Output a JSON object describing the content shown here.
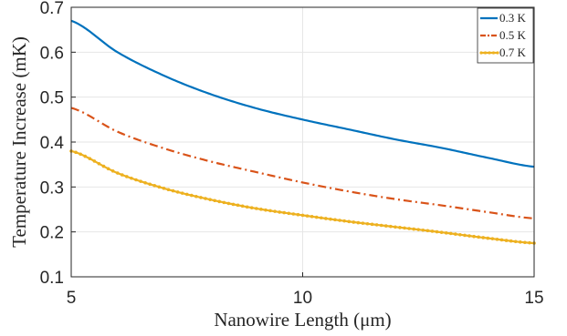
{
  "chart_data": {
    "type": "line",
    "title": "",
    "xlabel": "Nanowire Length (μm)",
    "ylabel": "Temperature Increase (mK)",
    "xlim": [
      5,
      15
    ],
    "ylim": [
      0.1,
      0.7
    ],
    "xticks": [
      "5",
      "10",
      "15"
    ],
    "yticks": [
      "0.1",
      "0.2",
      "0.3",
      "0.4",
      "0.5",
      "0.6",
      "0.7"
    ],
    "grid": true,
    "legend_position": "top-right",
    "x": [
      5,
      6,
      7,
      8,
      9,
      10,
      11,
      12,
      13,
      14,
      15
    ],
    "series": [
      {
        "name": "0.3 K",
        "color": "#0072BD",
        "style": "solid",
        "values": [
          0.67,
          0.6,
          0.548,
          0.507,
          0.475,
          0.45,
          0.428,
          0.406,
          0.387,
          0.365,
          0.345
        ]
      },
      {
        "name": "0.5 K",
        "color": "#D95319",
        "style": "dashdot",
        "values": [
          0.476,
          0.423,
          0.386,
          0.357,
          0.333,
          0.31,
          0.29,
          0.273,
          0.259,
          0.244,
          0.23
        ]
      },
      {
        "name": "0.7 K",
        "color": "#EDB120",
        "style": "dotted-solid",
        "values": [
          0.38,
          0.331,
          0.297,
          0.272,
          0.252,
          0.237,
          0.223,
          0.211,
          0.199,
          0.186,
          0.175
        ]
      }
    ]
  }
}
